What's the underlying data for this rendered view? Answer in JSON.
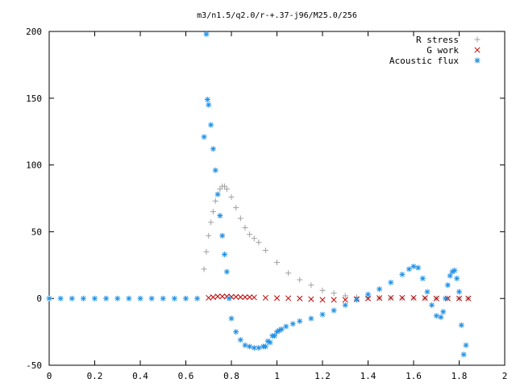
{
  "chart_data": {
    "type": "scatter",
    "title": "m3/n1.5/q2.0/r-+.37-j96/M25.0/256",
    "xlabel": "",
    "ylabel": "",
    "xlim": [
      0,
      2
    ],
    "ylim": [
      -50,
      200
    ],
    "xticks": [
      0,
      0.2,
      0.4,
      0.6,
      0.8,
      1,
      1.2,
      1.4,
      1.6,
      1.8,
      2
    ],
    "xtick_labels": [
      "0",
      "0.2",
      "0.4",
      "0.6",
      "0.8",
      "1",
      "1.2",
      "1.4",
      "1.6",
      "1.8",
      "2"
    ],
    "yticks": [
      -50,
      0,
      50,
      100,
      150,
      200
    ],
    "ytick_labels": [
      "-50",
      "0",
      "50",
      "100",
      "150",
      "200"
    ],
    "grid": false,
    "legend_position": "top-right",
    "series": [
      {
        "name": "R stress",
        "marker": "plus",
        "color": "#a0a0a0",
        "x": [
          0.68,
          0.69,
          0.7,
          0.71,
          0.72,
          0.73,
          0.74,
          0.75,
          0.76,
          0.77,
          0.78,
          0.8,
          0.82,
          0.84,
          0.86,
          0.88,
          0.9,
          0.92,
          0.95,
          1.0,
          1.05,
          1.1,
          1.15,
          1.2,
          1.25,
          1.3,
          1.35,
          1.4,
          1.45,
          1.5,
          1.55,
          1.6,
          1.65,
          1.7,
          1.75,
          1.8,
          1.84
        ],
        "y": [
          22,
          35,
          47,
          57,
          65,
          73,
          78,
          82,
          84,
          84,
          82,
          76,
          68,
          60,
          53,
          48,
          45,
          42,
          36,
          27,
          19,
          14,
          10,
          6,
          4,
          2,
          1,
          0.5,
          0.3,
          0.2,
          0.1,
          0.1,
          0,
          0,
          0,
          0,
          0
        ]
      },
      {
        "name": "G work",
        "marker": "cross",
        "color": "#c00000",
        "x": [
          0.7,
          0.72,
          0.74,
          0.76,
          0.78,
          0.8,
          0.82,
          0.84,
          0.86,
          0.88,
          0.9,
          0.95,
          1.0,
          1.05,
          1.1,
          1.15,
          1.2,
          1.25,
          1.3,
          1.35,
          1.4,
          1.45,
          1.5,
          1.55,
          1.6,
          1.65,
          1.7,
          1.75,
          1.8,
          1.84
        ],
        "y": [
          0.5,
          1,
          1.5,
          1.5,
          1.5,
          1.3,
          1.2,
          1,
          1,
          1,
          0.8,
          0.5,
          0.3,
          0.2,
          0,
          -0.5,
          -1,
          -1,
          -1,
          -0.5,
          0,
          0.3,
          0.5,
          0.5,
          0.5,
          0.3,
          0,
          0,
          0,
          0
        ]
      },
      {
        "name": "Acoustic flux",
        "marker": "star",
        "color": "#1e90e6",
        "x": [
          0,
          0.05,
          0.1,
          0.15,
          0.2,
          0.25,
          0.3,
          0.35,
          0.4,
          0.45,
          0.5,
          0.55,
          0.6,
          0.65,
          0.68,
          0.69,
          0.695,
          0.7,
          0.71,
          0.72,
          0.73,
          0.74,
          0.75,
          0.76,
          0.77,
          0.78,
          0.79,
          0.8,
          0.82,
          0.84,
          0.86,
          0.88,
          0.9,
          0.92,
          0.94,
          0.96,
          0.98,
          1.0,
          1.02,
          0.95,
          0.97,
          0.99,
          1.01,
          1.04,
          1.07,
          1.1,
          1.15,
          1.2,
          1.25,
          1.3,
          1.35,
          1.4,
          1.45,
          1.5,
          1.55,
          1.58,
          1.6,
          1.62,
          1.64,
          1.66,
          1.68,
          1.7,
          1.72,
          1.73,
          1.74,
          1.75,
          1.76,
          1.77,
          1.78,
          1.79,
          1.8,
          1.81,
          1.82,
          1.83
        ],
        "y": [
          0,
          0,
          0,
          0,
          0,
          0,
          0,
          0,
          0,
          0,
          0,
          0,
          0,
          0,
          121,
          198,
          149,
          145,
          130,
          112,
          96,
          78,
          62,
          47,
          33,
          20,
          0,
          -15,
          -25,
          -31,
          -35,
          -36,
          -37,
          -37,
          -36,
          -32,
          -28,
          -25,
          -23,
          -36,
          -33,
          -28,
          -24,
          -21,
          -19,
          -17,
          -15,
          -12,
          -9,
          -5,
          -1,
          3,
          7,
          12,
          18,
          22,
          24,
          23,
          15,
          5,
          -5,
          -13,
          -14,
          -10,
          0,
          10,
          17,
          20,
          21,
          15,
          5,
          -20,
          -42,
          -35
        ]
      }
    ]
  }
}
